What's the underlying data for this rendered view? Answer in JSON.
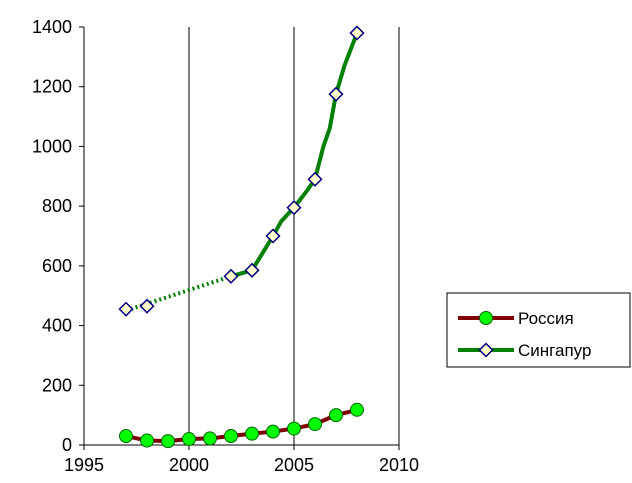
{
  "chart_data": {
    "type": "scatter",
    "title": "",
    "xlabel": "",
    "ylabel": "",
    "xlim": [
      1995,
      2010
    ],
    "ylim": [
      0,
      1400
    ],
    "x_ticks": [
      1995,
      2000,
      2005,
      2010
    ],
    "y_ticks": [
      0,
      200,
      400,
      600,
      800,
      1000,
      1200,
      1400
    ],
    "grid": "vertical",
    "legend_position": "right",
    "series": [
      {
        "name": "Россия",
        "color": "#7f0000",
        "marker": "circle",
        "marker_fill": "#00ff00",
        "x": [
          1997,
          1998,
          1999,
          2000,
          2001,
          2002,
          2003,
          2004,
          2005,
          2006,
          2007,
          2008
        ],
        "y": [
          30,
          15,
          13,
          20,
          22,
          30,
          38,
          45,
          55,
          70,
          100,
          118
        ],
        "line_x": [
          1997,
          1998,
          1999,
          2000,
          2001,
          2002,
          2003,
          2004,
          2005,
          2006,
          2007,
          2008
        ],
        "line_y": [
          30,
          15,
          13,
          20,
          22,
          30,
          38,
          45,
          55,
          70,
          100,
          118
        ]
      },
      {
        "name": "Сингапур",
        "color": "#008000",
        "marker": "diamond",
        "marker_fill": "#ffffcc",
        "x": [
          1997,
          1998,
          2002,
          2003,
          2004,
          2005,
          2006,
          2007,
          2008
        ],
        "y": [
          455,
          465,
          565,
          585,
          700,
          795,
          890,
          1175,
          1380
        ],
        "dotted_x": [
          1997,
          2002
        ],
        "dotted_y": [
          450,
          565
        ],
        "line_x": [
          2002,
          2003,
          2004,
          2004.4,
          2005,
          2005.6,
          2006,
          2006.4,
          2006.7,
          2007,
          2007.4,
          2008
        ],
        "line_y": [
          565,
          585,
          700,
          750,
          795,
          850,
          890,
          1000,
          1060,
          1175,
          1270,
          1380
        ]
      }
    ]
  }
}
